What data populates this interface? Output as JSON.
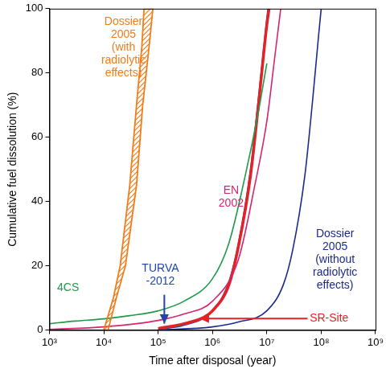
{
  "chart_data": {
    "type": "line",
    "x_label": "Time after disposal (year)",
    "y_label": "Cumulative fuel dissolution (%)",
    "log": "x",
    "grid": false,
    "xlim": [
      1000,
      1000000000
    ],
    "xticks": [
      {
        "value": 1000,
        "label": "10³"
      },
      {
        "value": 10000,
        "label": "10⁴"
      },
      {
        "value": 100000,
        "label": "10⁵"
      },
      {
        "value": 1000000,
        "label": "10⁶"
      },
      {
        "value": 10000000,
        "label": "10⁷"
      },
      {
        "value": 100000000,
        "label": "10⁸"
      },
      {
        "value": 1000000000,
        "label": "10⁹"
      }
    ],
    "ylim": [
      0,
      100
    ],
    "yticks": [
      0,
      20,
      40,
      60,
      80,
      100
    ],
    "series": [
      {
        "name": "Dossier 2005 (with radiolytic effects)",
        "type": "band",
        "color": "#f07d1a",
        "values": [
          0,
          10,
          20,
          45,
          70,
          88,
          100
        ],
        "x_left": [
          10000,
          15000,
          20000,
          30000,
          40000,
          50000,
          55000
        ],
        "x_right": [
          12000,
          17000,
          25000,
          40000,
          52000,
          68000,
          80000
        ]
      },
      {
        "name": "4CS",
        "color": "#1e9a48",
        "x": [
          1000,
          3000,
          10000,
          30000,
          100000,
          300000,
          1000000,
          2000000,
          4000000,
          7000000,
          10000000
        ],
        "values": [
          2,
          2.8,
          3.5,
          4.5,
          6,
          9,
          16,
          27,
          48,
          68,
          83
        ]
      },
      {
        "name": "EN 2002",
        "color": "#d6246e",
        "x": [
          1000,
          10000,
          100000,
          300000,
          1000000,
          3000000,
          6000000,
          10000000,
          14000000,
          18000000
        ],
        "values": [
          0.2,
          1,
          3,
          5,
          9,
          22,
          45,
          65,
          85,
          100
        ]
      },
      {
        "name": "SR-Site",
        "color": "#e32228",
        "x": [
          100000,
          300000,
          700000,
          1000000,
          2000000,
          3000000,
          5000000,
          7000000,
          10000000,
          11000000
        ],
        "values": [
          0.5,
          2,
          4,
          6,
          14,
          26,
          48,
          70,
          95,
          100
        ]
      },
      {
        "name": "TURVA-2012",
        "color": "#2145a8",
        "x": [
          100000,
          300000,
          1000000,
          2000000,
          3000000,
          5000000,
          7000000,
          10000000,
          10500000
        ],
        "values": [
          0.2,
          1.5,
          6,
          15,
          27,
          50,
          72,
          97,
          100
        ]
      },
      {
        "name": "Dossier 2005 (without radiolytic effects)",
        "color": "#1c2a8c",
        "x": [
          100000,
          1000000,
          3000000,
          10000000,
          20000000,
          30000000,
          50000000,
          70000000,
          90000000,
          100000000
        ],
        "values": [
          0,
          1,
          2.5,
          6,
          14,
          25,
          48,
          72,
          92,
          100
        ]
      }
    ],
    "annotations": [
      {
        "text": [
          "Dossier",
          "2005",
          "(with",
          "radiolytic",
          "effects)"
        ],
        "x": 23000,
        "y": 88,
        "color": "#f07d1a"
      },
      {
        "text": [
          "4CS"
        ],
        "x": 2200,
        "y": 13,
        "color": "#1e9a48"
      },
      {
        "text": [
          "TURVA",
          "-2012"
        ],
        "x": 110000,
        "y": 17,
        "color": "#2145a8",
        "arrow": [
          [
            130000,
            11
          ],
          [
            130000,
            2
          ]
        ]
      },
      {
        "text": [
          "EN",
          "2002"
        ],
        "x": 2200000,
        "y": 41.5,
        "color": "#d6246e"
      },
      {
        "text": [
          "Dossier",
          "2005",
          "(without",
          "radiolytic",
          "effects)"
        ],
        "x": 180000000,
        "y": 22,
        "color": "#1c2a8c"
      },
      {
        "text": [
          "SR-Site"
        ],
        "x": 140000000,
        "y": 3.6,
        "color": "#e32228",
        "arrow": [
          [
            56000000,
            3.6
          ],
          [
            580000,
            3.6
          ]
        ]
      }
    ]
  }
}
